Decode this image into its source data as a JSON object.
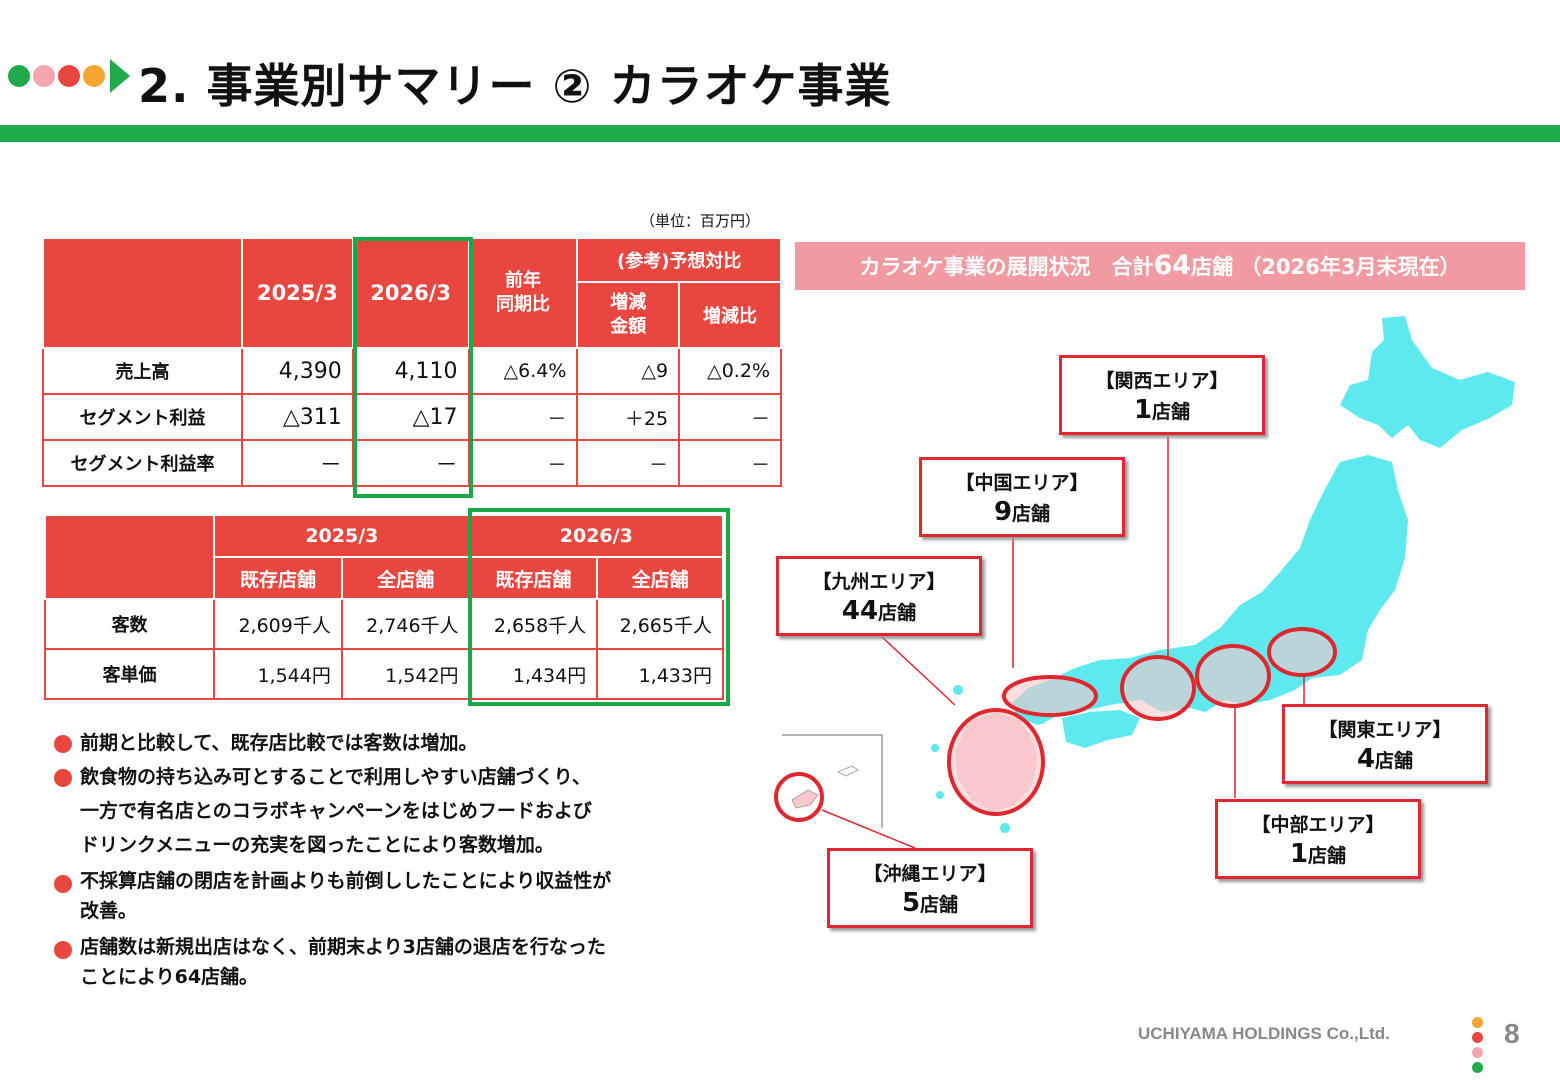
{
  "header": {
    "title": "2. 事業別サマリー ② カラオケ事業",
    "dot_colors": [
      "#1fab4b",
      "#f4a6b0",
      "#e8463f",
      "#f5a631"
    ],
    "arrow_color": "#22aa4a",
    "bar_color": "#1fab4b"
  },
  "unit_note": "（単位：百万円）",
  "pl_table": {
    "headers": {
      "fy2025": "2025/3",
      "fy2026": "2026/3",
      "yoy": "前年\n同期比",
      "ref_group": "(参考)予想対比",
      "ref_diff": "増減\n金額",
      "ref_rate": "増減比"
    },
    "rows": [
      {
        "label": "売上高",
        "fy2025": "4,390",
        "fy2026": "4,110",
        "yoy": "△6.4%",
        "ref_diff": "△9",
        "ref_rate": "△0.2%"
      },
      {
        "label": "セグメント利益",
        "fy2025": "△311",
        "fy2026": "△17",
        "yoy": "－",
        "ref_diff": "＋25",
        "ref_rate": "－"
      },
      {
        "label": "セグメント利益率",
        "fy2025": "－",
        "fy2026": "－",
        "yoy": "－",
        "ref_diff": "－",
        "ref_rate": "－"
      }
    ]
  },
  "kpi_table": {
    "headers": {
      "fy2025": "2025/3",
      "fy2026": "2026/3",
      "existing": "既存店舗",
      "all": "全店舗"
    },
    "rows": [
      {
        "label": "客数",
        "v": [
          "2,609千人",
          "2,746千人",
          "2,658千人",
          "2,665千人"
        ]
      },
      {
        "label": "客単価",
        "v": [
          "1,544円",
          "1,542円",
          "1,434円",
          "1,433円"
        ]
      }
    ]
  },
  "bullets": [
    {
      "lines": [
        "前期と比較して、既存店比較では客数は増加。"
      ]
    },
    {
      "lines": [
        "飲食物の持ち込み可とすることで利用しやすい店舗づくり、",
        "一方で有名店とのコラボキャンペーンをはじめフードおよび",
        "ドリンクメニューの充実を図ったことにより客数増加。"
      ]
    },
    {
      "lines": [
        "不採算店舗の閉店を計画よりも前倒ししたことにより収益性が",
        "改善。"
      ]
    },
    {
      "lines": [
        "店舗数は新規出店はなく、前期末より3店舗の退店を行なった",
        "ことにより64店舗。"
      ]
    }
  ],
  "map": {
    "banner_pre": "カラオケ事業の展開状況　合計",
    "banner_num": "64",
    "banner_post": "店舗 （2026年3月末現在）",
    "store_unit": "店舗",
    "areas": [
      {
        "name": "【関西エリア】",
        "count": "1"
      },
      {
        "name": "【中国エリア】",
        "count": "9"
      },
      {
        "name": "【九州エリア】",
        "count": "44"
      },
      {
        "name": "【関東エリア】",
        "count": "4"
      },
      {
        "name": "【中部エリア】",
        "count": "1"
      },
      {
        "name": "【沖縄エリア】",
        "count": "5"
      }
    ],
    "land_color": "#5ee9ee",
    "highlight_color": "#f8c8cc",
    "marker_color": "#e0262e"
  },
  "footer": {
    "company": "UCHIYAMA HOLDINGS Co.,Ltd.",
    "page": "8"
  }
}
